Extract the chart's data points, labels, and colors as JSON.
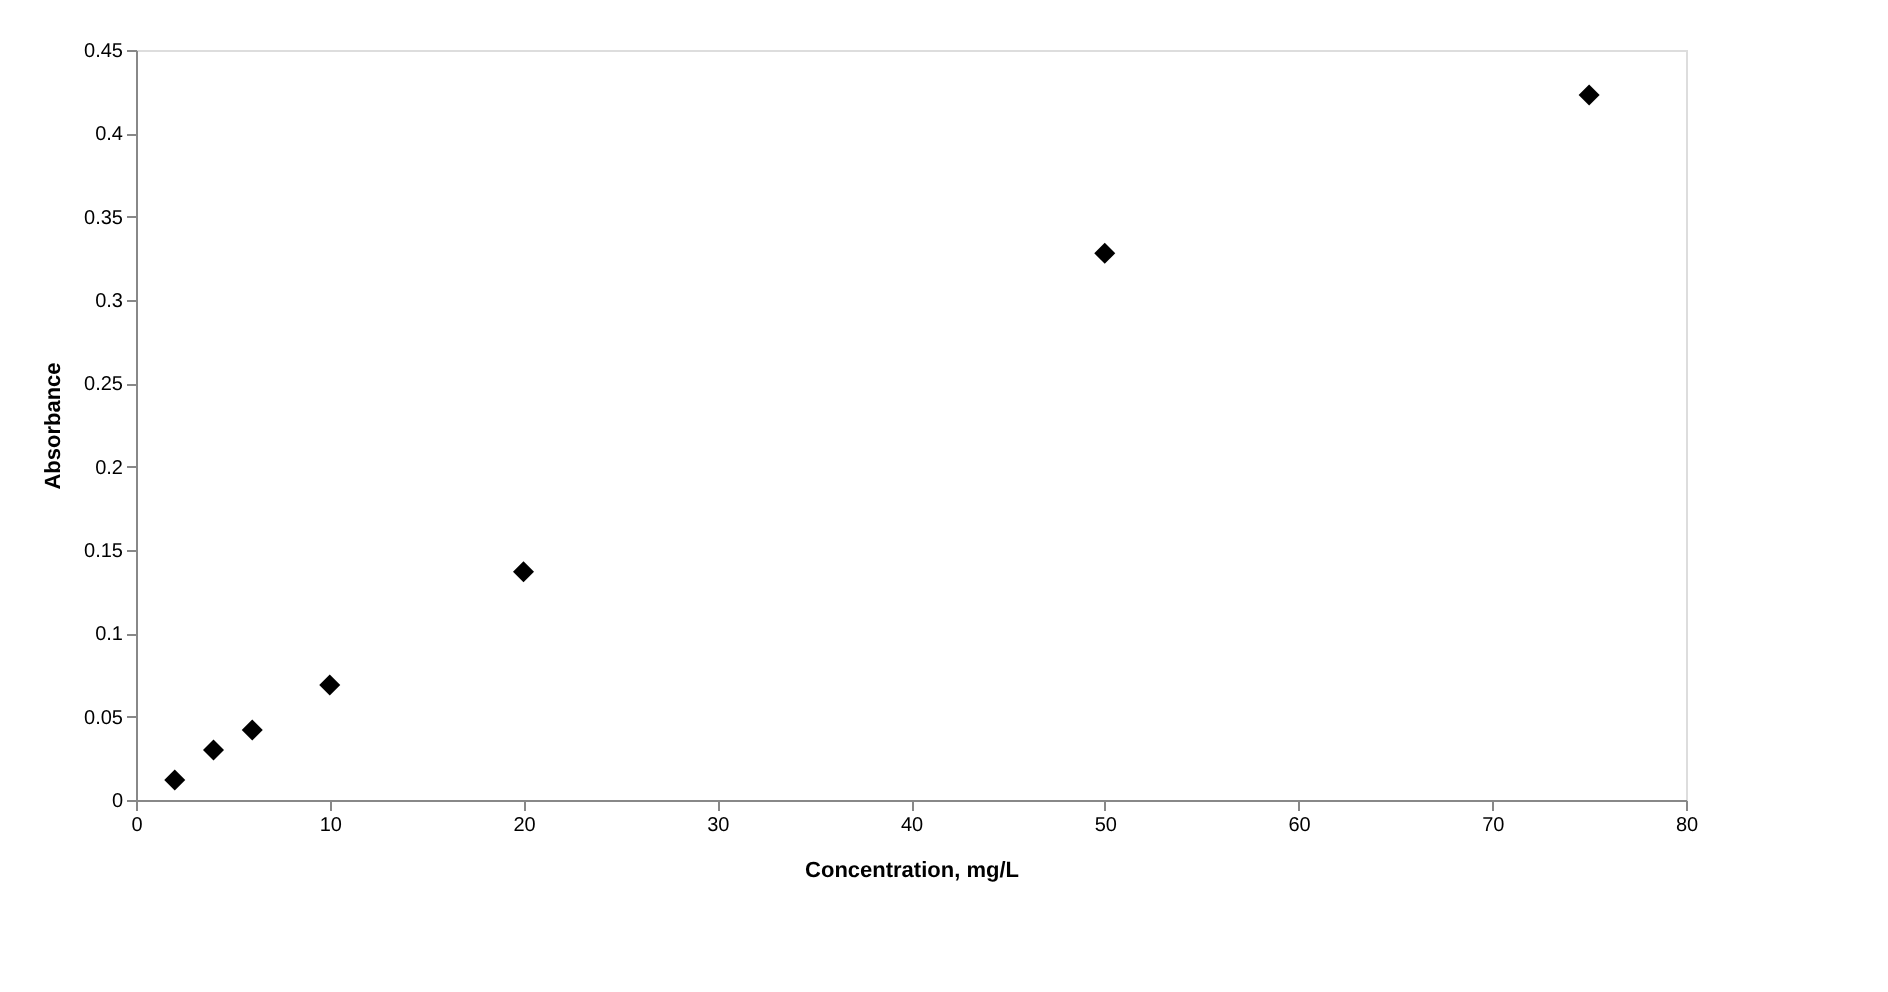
{
  "chart_data": {
    "type": "scatter",
    "xlabel": "Concentration, mg/L",
    "ylabel": "Absorbance",
    "x": [
      2,
      4,
      6,
      10,
      20,
      50,
      75
    ],
    "series": [
      {
        "color": "#000000",
        "values": [
          0.012,
          0.03,
          0.042,
          0.069,
          0.137,
          0.328,
          0.423
        ]
      }
    ],
    "xlim": [
      0,
      80
    ],
    "xticks": [
      0,
      10,
      20,
      30,
      40,
      50,
      60,
      70,
      80
    ],
    "ylim": [
      0,
      0.45
    ],
    "yticks": [
      0,
      0.05,
      0.1,
      0.15,
      0.2,
      0.25,
      0.3,
      0.35,
      0.4,
      0.45
    ],
    "marker": "diamond",
    "grid": false,
    "legend": false
  }
}
